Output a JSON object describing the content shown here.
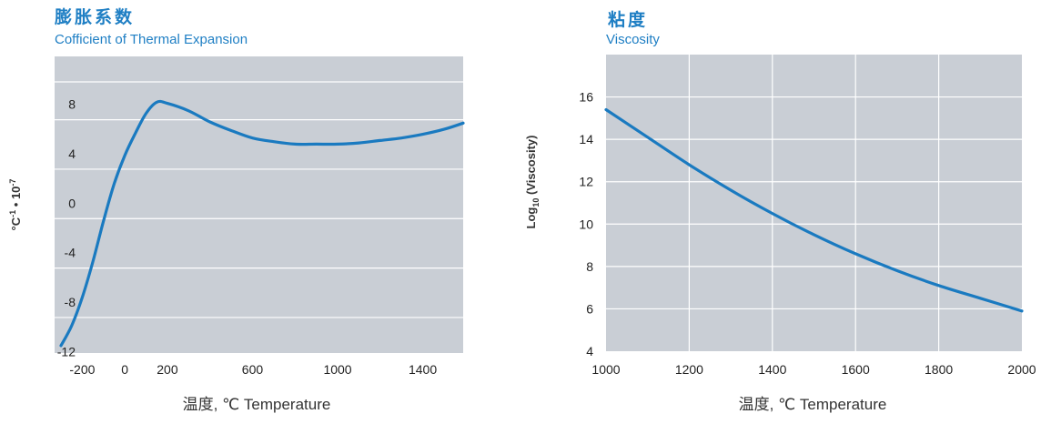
{
  "chart_data": [
    {
      "type": "line",
      "title": "膨胀系数",
      "subtitle": "Cofficient of Thermal Expansion",
      "xlabel": "温度, ℃  Temperature",
      "ylabel_parts": {
        "base": "°C",
        "exp1": "-1",
        "mid": " • 10",
        "exp2": "-7"
      },
      "xlim": [
        -330,
        1590
      ],
      "ylim": [
        -12.2,
        11.8
      ],
      "x_ticks": [
        "-200",
        "0",
        "200",
        "600",
        "1000",
        "1400"
      ],
      "x_tick_values": [
        -200,
        0,
        200,
        600,
        1000,
        1400
      ],
      "y_ticks": [
        "8",
        "4",
        "0",
        "-4",
        "-8",
        "-12"
      ],
      "y_tick_values": [
        8,
        4,
        0,
        -4,
        -8,
        -12
      ],
      "grid": "horizontal",
      "colors": {
        "plot_bg": "#c9ced5",
        "grid": "#ffffff",
        "line": "#1a7ac0"
      },
      "series": [
        {
          "x": [
            -300,
            -250,
            -200,
            -150,
            -100,
            -50,
            0,
            50,
            100,
            150,
            200,
            300,
            400,
            500,
            600,
            700,
            800,
            900,
            1000,
            1100,
            1200,
            1300,
            1400,
            1500,
            1590
          ],
          "y": [
            -11.6,
            -10,
            -7.7,
            -4.8,
            -1.5,
            1.5,
            3.8,
            5.6,
            7.2,
            8.1,
            8.0,
            7.4,
            6.5,
            5.8,
            5.2,
            4.9,
            4.7,
            4.7,
            4.7,
            4.8,
            5.0,
            5.2,
            5.5,
            5.9,
            6.4
          ]
        }
      ]
    },
    {
      "type": "line",
      "title": "粘度",
      "subtitle": "Viscosity",
      "xlabel": "温度, ℃  Temperature",
      "ylabel_parts": {
        "pre": "Log",
        "sub": "10",
        "post": " (Viscosity)"
      },
      "xlim": [
        1000,
        2000
      ],
      "ylim": [
        4,
        18
      ],
      "x_ticks": [
        "1000",
        "1200",
        "1400",
        "1600",
        "1800",
        "2000"
      ],
      "x_tick_values": [
        1000,
        1200,
        1400,
        1600,
        1800,
        2000
      ],
      "y_ticks": [
        "16",
        "14",
        "12",
        "10",
        "8",
        "6",
        "4"
      ],
      "y_tick_values": [
        16,
        14,
        12,
        10,
        8,
        6,
        4
      ],
      "grid": "both",
      "colors": {
        "plot_bg": "#c9ced5",
        "grid": "#ffffff",
        "line": "#1a7ac0"
      },
      "series": [
        {
          "x": [
            1000,
            1100,
            1200,
            1300,
            1400,
            1500,
            1600,
            1700,
            1800,
            1900,
            2000
          ],
          "y": [
            15.4,
            14.1,
            12.8,
            11.6,
            10.5,
            9.5,
            8.6,
            7.8,
            7.1,
            6.5,
            5.9
          ]
        }
      ]
    }
  ]
}
